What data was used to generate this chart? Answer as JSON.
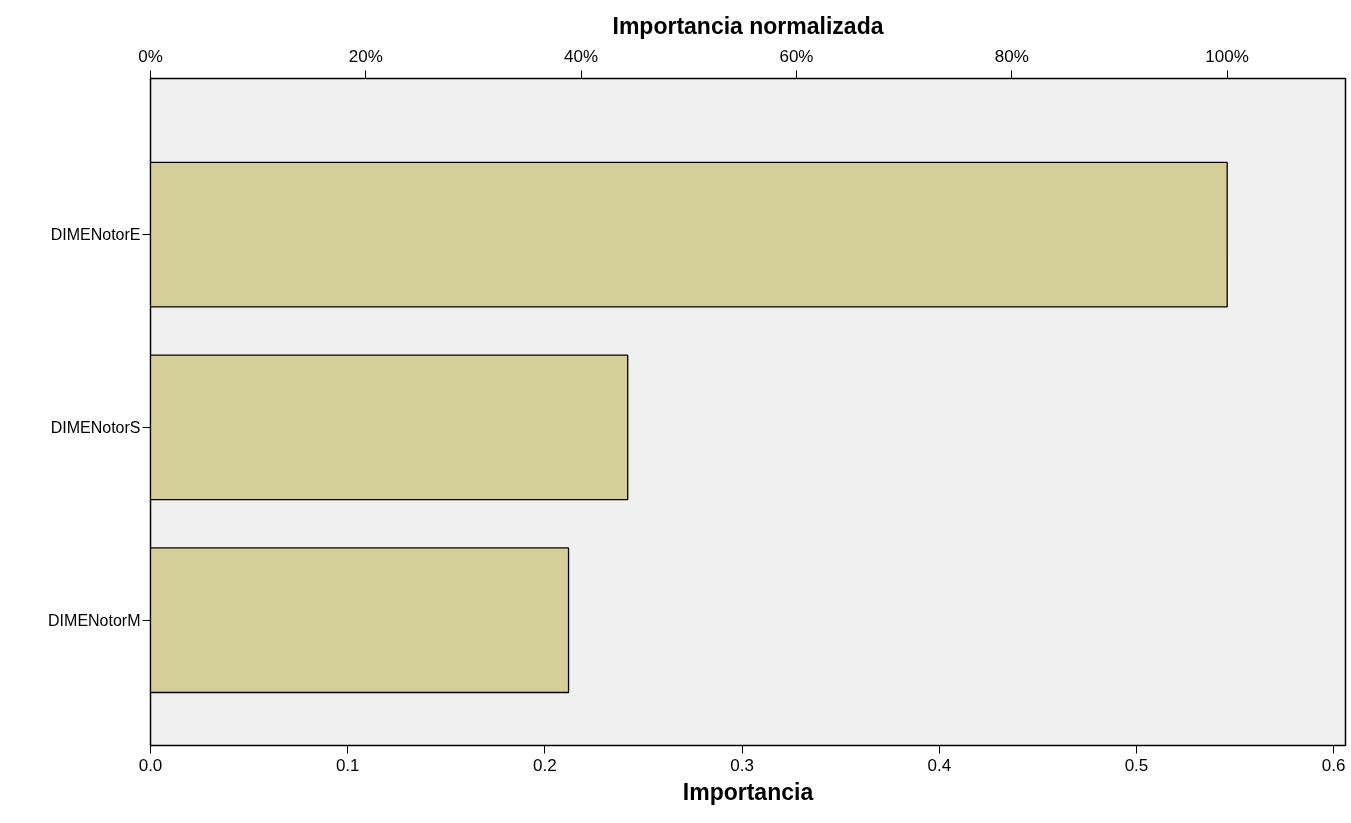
{
  "chart_data": {
    "type": "bar",
    "orientation": "horizontal",
    "xlabel": "Importancia",
    "x2label": "Importancia normalizada",
    "categories": [
      "DIMENotorE",
      "DIMENotorS",
      "DIMENotorM"
    ],
    "values": [
      0.546,
      0.242,
      0.212
    ],
    "color": "#d4ce99",
    "xlim": [
      0,
      0.606
    ],
    "xticks": [
      {
        "value": 0,
        "label": "0.0"
      },
      0.1,
      0.2,
      0.3,
      0.4,
      0.5,
      0.6
    ],
    "x2lim": [
      0,
      111
    ],
    "x2ticks": [
      {
        "value": 0,
        "label": "0%"
      },
      {
        "value": 20,
        "label": "20%"
      },
      {
        "value": 40,
        "label": "40%"
      },
      {
        "value": 60,
        "label": "60%"
      },
      {
        "value": 80,
        "label": "80%"
      },
      {
        "value": 100,
        "label": "100%"
      }
    ],
    "grid": false
  }
}
